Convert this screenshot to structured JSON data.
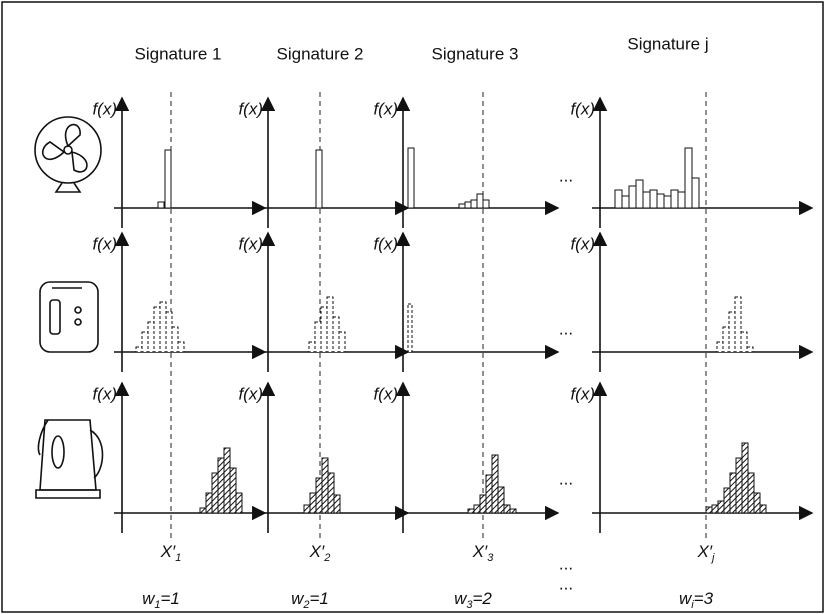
{
  "columns": [
    "Signature 1",
    "Signature 2",
    "Signature 3",
    "Signature j"
  ],
  "axis_label": "f(x)",
  "ellipsis": "...",
  "thresholds": [
    {
      "base": "X′",
      "sub": "1"
    },
    {
      "base": "X′",
      "sub": "2"
    },
    {
      "base": "X′",
      "sub": "3"
    },
    {
      "base": "X′",
      "sub": "j"
    }
  ],
  "weights": [
    {
      "base": "w",
      "sub": "1",
      "rest": "=1"
    },
    {
      "base": "w",
      "sub": "2",
      "rest": "=1"
    },
    {
      "base": "w",
      "sub": "3",
      "rest": "=2"
    },
    {
      "base": "w",
      "sub": "i",
      "rest": "=3"
    }
  ]
}
